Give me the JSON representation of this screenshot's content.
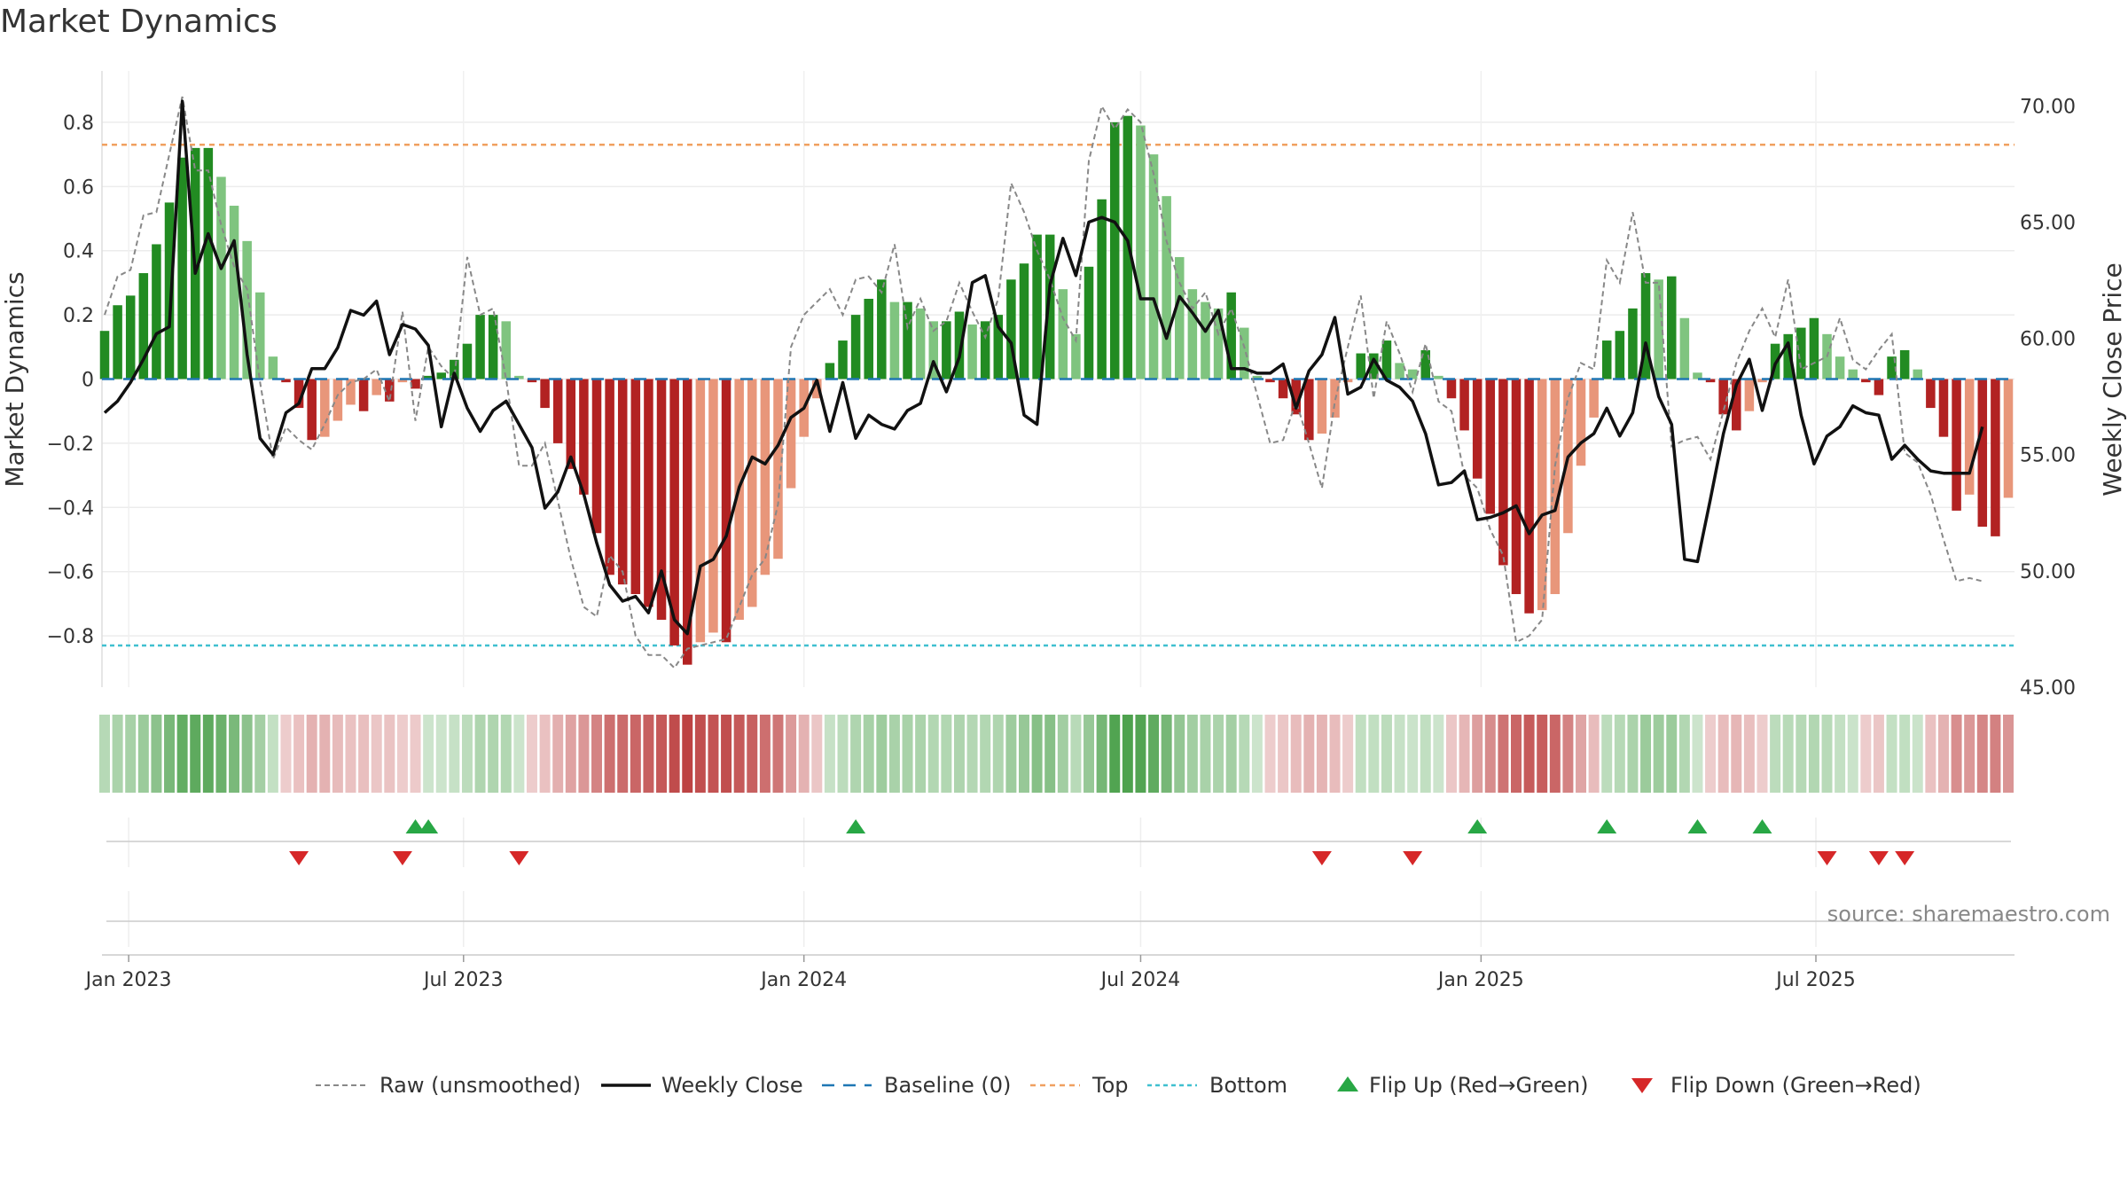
{
  "title": "Market Dynamics",
  "source": "source: sharemaestro.com",
  "chart_data": {
    "type": "bar",
    "title": "Market Dynamics",
    "ylabel_left": "Market Dynamics",
    "ylabel_right": "Weekly Close Price",
    "ylim_left": [
      -0.96,
      0.96
    ],
    "ylim_right": [
      45.0,
      71.5
    ],
    "yticks_left": [
      -0.8,
      -0.6,
      -0.4,
      -0.2,
      0,
      0.2,
      0.4,
      0.6,
      0.8
    ],
    "yticks_left_labels": [
      "−0.8",
      "−0.6",
      "−0.4",
      "−0.2",
      "0",
      "0.2",
      "0.4",
      "0.6",
      "0.8"
    ],
    "yticks_right": [
      45,
      50,
      55,
      60,
      65,
      70
    ],
    "yticks_right_labels": [
      "45.00",
      "50.00",
      "55.00",
      "60.00",
      "65.00",
      "70.00"
    ],
    "x_start": "2022-12-19",
    "x_ticks": [
      {
        "label": "Jan 2023",
        "date": "2023-01-01"
      },
      {
        "label": "Jul 2023",
        "date": "2023-07-01"
      },
      {
        "label": "Jan 2024",
        "date": "2024-01-01"
      },
      {
        "label": "Jul 2024",
        "date": "2024-07-01"
      },
      {
        "label": "Jan 2025",
        "date": "2025-01-01"
      },
      {
        "label": "Jul 2025",
        "date": "2025-07-01"
      }
    ],
    "top_level": 0.73,
    "bottom_level": -0.83,
    "baseline": 0,
    "grid": true,
    "legend_position": "bottom",
    "momentum": [
      0.15,
      0.23,
      0.26,
      0.33,
      0.42,
      0.55,
      0.69,
      0.72,
      0.72,
      0.63,
      0.54,
      0.43,
      0.27,
      0.07,
      -0.01,
      -0.09,
      -0.19,
      -0.18,
      -0.13,
      -0.08,
      -0.1,
      -0.05,
      -0.07,
      -0.01,
      -0.03,
      0.01,
      0.02,
      0.06,
      0.11,
      0.2,
      0.2,
      0.18,
      0.01,
      -0.01,
      -0.09,
      -0.2,
      -0.28,
      -0.36,
      -0.48,
      -0.61,
      -0.64,
      -0.67,
      -0.71,
      -0.75,
      -0.83,
      -0.89,
      -0.82,
      -0.79,
      -0.82,
      -0.75,
      -0.71,
      -0.61,
      -0.56,
      -0.34,
      -0.18,
      -0.06,
      0.05,
      0.12,
      0.2,
      0.25,
      0.31,
      0.24,
      0.24,
      0.22,
      0.18,
      0.18,
      0.21,
      0.17,
      0.18,
      0.2,
      0.31,
      0.36,
      0.45,
      0.45,
      0.28,
      0.14,
      0.35,
      0.56,
      0.8,
      0.82,
      0.79,
      0.7,
      0.57,
      0.38,
      0.28,
      0.24,
      0.22,
      0.27,
      0.16,
      0.01,
      -0.01,
      -0.06,
      -0.11,
      -0.19,
      -0.17,
      -0.12,
      -0.01,
      0.08,
      0.08,
      0.12,
      0.05,
      0.03,
      0.09,
      0.01,
      -0.06,
      -0.16,
      -0.31,
      -0.42,
      -0.58,
      -0.67,
      -0.73,
      -0.72,
      -0.67,
      -0.48,
      -0.27,
      -0.12,
      0.12,
      0.15,
      0.22,
      0.33,
      0.31,
      0.32,
      0.19,
      0.02,
      -0.01,
      -0.11,
      -0.16,
      -0.1,
      -0.01,
      0.11,
      0.14,
      0.16,
      0.19,
      0.14,
      0.07,
      0.03,
      -0.01,
      -0.05,
      0.07,
      0.09,
      0.03,
      -0.09,
      -0.18,
      -0.41,
      -0.36,
      -0.46,
      -0.49,
      -0.37
    ],
    "raw_unsmoothed": [
      0.2,
      0.32,
      0.34,
      0.51,
      0.52,
      0.7,
      0.88,
      0.65,
      0.65,
      0.48,
      0.35,
      0.28,
      -0.01,
      -0.25,
      -0.15,
      -0.19,
      -0.22,
      -0.14,
      -0.05,
      -0.01,
      0.0,
      0.03,
      -0.07,
      0.21,
      -0.13,
      0.1,
      0.04,
      0.0,
      0.38,
      0.2,
      0.22,
      0.0,
      -0.27,
      -0.27,
      -0.2,
      -0.38,
      -0.56,
      -0.71,
      -0.74,
      -0.55,
      -0.6,
      -0.8,
      -0.86,
      -0.86,
      -0.9,
      -0.84,
      -0.83,
      -0.82,
      -0.81,
      -0.71,
      -0.61,
      -0.56,
      -0.39,
      0.1,
      0.2,
      0.24,
      0.28,
      0.2,
      0.31,
      0.32,
      0.27,
      0.42,
      0.16,
      0.25,
      0.15,
      0.18,
      0.3,
      0.21,
      0.13,
      0.25,
      0.61,
      0.52,
      0.4,
      0.31,
      0.19,
      0.12,
      0.68,
      0.85,
      0.78,
      0.84,
      0.8,
      0.64,
      0.43,
      0.3,
      0.22,
      0.27,
      0.14,
      0.22,
      0.1,
      -0.05,
      -0.2,
      -0.19,
      -0.07,
      -0.2,
      -0.34,
      -0.07,
      0.1,
      0.26,
      -0.06,
      0.18,
      0.08,
      -0.04,
      0.11,
      -0.07,
      -0.1,
      -0.3,
      -0.34,
      -0.47,
      -0.55,
      -0.82,
      -0.8,
      -0.75,
      -0.27,
      -0.06,
      0.05,
      0.03,
      0.37,
      0.3,
      0.52,
      0.3,
      0.3,
      -0.21,
      -0.19,
      -0.18,
      -0.25,
      -0.1,
      0.05,
      0.15,
      0.22,
      0.13,
      0.31,
      0.03,
      0.05,
      0.07,
      0.19,
      0.06,
      0.03,
      0.09,
      0.14,
      -0.23,
      -0.26,
      -0.36,
      -0.5,
      -0.63,
      -0.62,
      -0.63
    ],
    "weekly_close": [
      56.8,
      57.3,
      58.1,
      59.1,
      60.2,
      60.5,
      70.2,
      62.8,
      64.5,
      63.0,
      64.2,
      59.3,
      55.7,
      55.0,
      56.8,
      57.2,
      58.7,
      58.7,
      59.6,
      61.2,
      61.0,
      61.6,
      59.3,
      60.6,
      60.4,
      59.7,
      56.2,
      58.5,
      57.0,
      56.0,
      56.9,
      57.3,
      56.3,
      55.3,
      52.7,
      53.4,
      54.9,
      53.3,
      51.2,
      49.4,
      48.7,
      48.9,
      48.2,
      50.0,
      47.9,
      47.3,
      50.2,
      50.5,
      51.5,
      53.6,
      54.9,
      54.6,
      55.4,
      56.6,
      57.0,
      58.2,
      56.0,
      58.1,
      55.7,
      56.7,
      56.3,
      56.1,
      56.9,
      57.2,
      59.0,
      57.7,
      59.2,
      62.4,
      62.7,
      60.5,
      59.8,
      56.7,
      56.3,
      62.3,
      64.3,
      62.7,
      65.0,
      65.2,
      65.0,
      64.2,
      61.7,
      61.7,
      60.0,
      61.8,
      61.1,
      60.3,
      61.2,
      58.7,
      58.7,
      58.5,
      58.5,
      58.9,
      57.0,
      58.6,
      59.3,
      60.9,
      57.6,
      57.9,
      59.1,
      58.2,
      57.9,
      57.3,
      55.9,
      53.7,
      53.8,
      54.3,
      52.2,
      52.3,
      52.5,
      52.8,
      51.6,
      52.4,
      52.6,
      54.9,
      55.5,
      55.9,
      57.0,
      55.8,
      56.8,
      59.8,
      57.5,
      56.3,
      50.5,
      50.4,
      53.1,
      55.9,
      58.0,
      59.1,
      56.9,
      58.9,
      59.8,
      56.7,
      54.6,
      55.8,
      56.2,
      57.1,
      56.8,
      56.7,
      54.8,
      55.4,
      54.8,
      54.3,
      54.2,
      54.2,
      54.2,
      56.2
    ],
    "flip_up_weeks": [
      24,
      25,
      58,
      106,
      116,
      123,
      128
    ],
    "flip_down_weeks": [
      15,
      23,
      32,
      94,
      101,
      133,
      137,
      139
    ],
    "legend": [
      {
        "key": "raw",
        "label": "Raw (unsmoothed)",
        "color": "#888888"
      },
      {
        "key": "close",
        "label": "Weekly Close",
        "color": "#111111"
      },
      {
        "key": "baseline",
        "label": "Baseline (0)",
        "color": "#1f77b4"
      },
      {
        "key": "top",
        "label": "Top",
        "color": "#f0a060"
      },
      {
        "key": "bottom",
        "label": "Bottom",
        "color": "#40c0d0"
      },
      {
        "key": "flip_up",
        "label": "Flip Up (Red→Green)",
        "color": "#28a745"
      },
      {
        "key": "flip_down",
        "label": "Flip Down (Green→Red)",
        "color": "#d62728"
      }
    ],
    "colors": {
      "pos_strong": "#228b22",
      "pos_weak": "#7fc47f",
      "neg_strong": "#b22222",
      "neg_weak": "#e8967a",
      "close_line": "#111111",
      "raw_line": "#888888",
      "baseline": "#1f77b4",
      "top": "#f0a060",
      "bottom": "#40c0d0",
      "flip_up": "#28a745",
      "flip_down": "#d62728"
    }
  }
}
